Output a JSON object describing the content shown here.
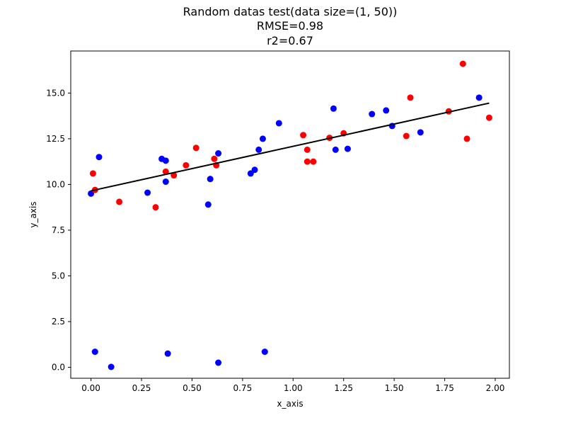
{
  "chart_data": {
    "type": "scatter",
    "title_lines": [
      "Random datas test(data size=(1, 50))",
      "RMSE=0.98",
      "r2=0.67"
    ],
    "xlabel": "x_axis",
    "ylabel": "y_axis",
    "xlim": [
      -0.1,
      2.07
    ],
    "ylim": [
      -0.6,
      17.3
    ],
    "xticks": [
      0.0,
      0.25,
      0.5,
      0.75,
      1.0,
      1.25,
      1.5,
      1.75,
      2.0
    ],
    "xtick_labels": [
      "0.00",
      "0.25",
      "0.50",
      "0.75",
      "1.00",
      "1.25",
      "1.50",
      "1.75",
      "2.00"
    ],
    "yticks": [
      0.0,
      2.5,
      5.0,
      7.5,
      10.0,
      12.5,
      15.0
    ],
    "ytick_labels": [
      "0.0",
      "2.5",
      "5.0",
      "7.5",
      "10.0",
      "12.5",
      "15.0"
    ],
    "grid": false,
    "series": [
      {
        "color": "#0000ff",
        "points": [
          [
            0.0,
            9.5
          ],
          [
            0.04,
            11.5
          ],
          [
            0.02,
            0.85
          ],
          [
            0.1,
            0.02
          ],
          [
            0.28,
            9.55
          ],
          [
            0.35,
            11.4
          ],
          [
            0.37,
            11.3
          ],
          [
            0.37,
            10.15
          ],
          [
            0.38,
            0.75
          ],
          [
            0.58,
            8.9
          ],
          [
            0.59,
            10.3
          ],
          [
            0.63,
            11.7
          ],
          [
            0.63,
            0.25
          ],
          [
            0.79,
            10.6
          ],
          [
            0.81,
            10.8
          ],
          [
            0.83,
            11.9
          ],
          [
            0.85,
            12.5
          ],
          [
            0.86,
            0.85
          ],
          [
            0.93,
            13.35
          ],
          [
            1.2,
            14.15
          ],
          [
            1.21,
            11.9
          ],
          [
            1.27,
            11.95
          ],
          [
            1.39,
            13.85
          ],
          [
            1.46,
            14.05
          ],
          [
            1.49,
            13.2
          ],
          [
            1.63,
            12.85
          ],
          [
            1.92,
            14.75
          ]
        ]
      },
      {
        "color": "#ff0000",
        "points": [
          [
            0.01,
            10.6
          ],
          [
            0.02,
            9.7
          ],
          [
            0.14,
            9.05
          ],
          [
            0.32,
            8.75
          ],
          [
            0.37,
            10.7
          ],
          [
            0.41,
            10.5
          ],
          [
            0.47,
            11.05
          ],
          [
            0.52,
            12.0
          ],
          [
            0.61,
            11.4
          ],
          [
            0.62,
            11.05
          ],
          [
            1.05,
            12.7
          ],
          [
            1.07,
            11.9
          ],
          [
            1.07,
            11.25
          ],
          [
            1.1,
            11.25
          ],
          [
            1.18,
            12.55
          ],
          [
            1.25,
            12.8
          ],
          [
            1.56,
            12.65
          ],
          [
            1.58,
            14.75
          ],
          [
            1.77,
            14.0
          ],
          [
            1.84,
            16.6
          ],
          [
            1.86,
            12.5
          ],
          [
            1.97,
            13.65
          ]
        ]
      }
    ],
    "fit_line": {
      "color": "#000000",
      "points": [
        [
          0.0,
          9.65
        ],
        [
          1.97,
          14.45
        ]
      ]
    }
  }
}
